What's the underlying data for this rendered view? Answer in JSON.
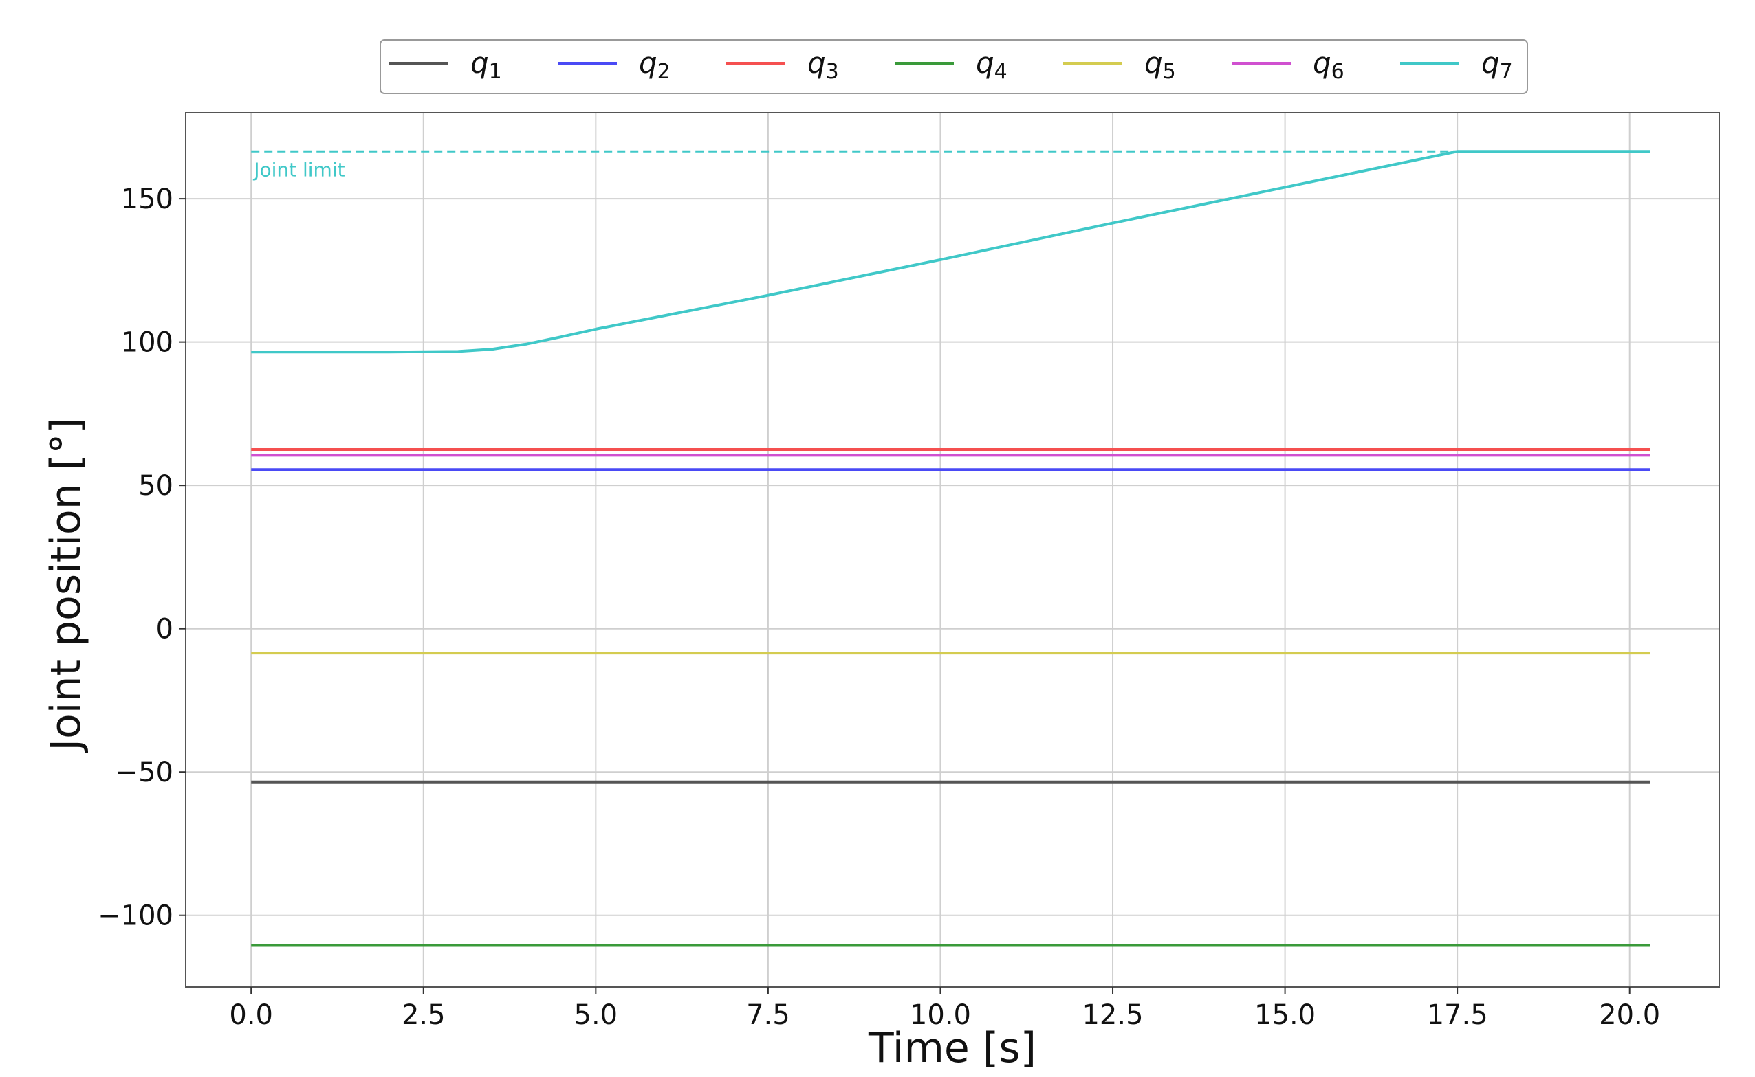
{
  "chart_data": {
    "type": "line",
    "xlabel": "Time [s]",
    "ylabel": "Joint position [°]",
    "xlim": [
      -0.95,
      21.3
    ],
    "ylim": [
      -125,
      180
    ],
    "xticks": [
      0.0,
      2.5,
      5.0,
      7.5,
      10.0,
      12.5,
      15.0,
      17.5,
      20.0
    ],
    "xtick_labels": [
      "0.0",
      "2.5",
      "5.0",
      "7.5",
      "10.0",
      "12.5",
      "15.0",
      "17.5",
      "20.0"
    ],
    "yticks": [
      -100,
      -50,
      0,
      50,
      100,
      150
    ],
    "ytick_labels": [
      "−100",
      "−50",
      "0",
      "50",
      "100",
      "150"
    ],
    "grid": true,
    "legend_position": "top-center, above plot, single row",
    "series": [
      {
        "name_base": "q",
        "name_sub": "1",
        "color": "#555555",
        "x": [
          0,
          20.3
        ],
        "y": [
          -53.5,
          -53.5
        ]
      },
      {
        "name_base": "q",
        "name_sub": "2",
        "color": "#4a4af5",
        "x": [
          0,
          20.3
        ],
        "y": [
          55.5,
          55.5
        ]
      },
      {
        "name_base": "q",
        "name_sub": "3",
        "color": "#f55050",
        "x": [
          0,
          20.3
        ],
        "y": [
          62.5,
          62.5
        ]
      },
      {
        "name_base": "q",
        "name_sub": "4",
        "color": "#3a9a3a",
        "x": [
          0,
          20.3
        ],
        "y": [
          -110.5,
          -110.5
        ]
      },
      {
        "name_base": "q",
        "name_sub": "5",
        "color": "#d4cc50",
        "x": [
          0,
          20.3
        ],
        "y": [
          -8.5,
          -8.5
        ]
      },
      {
        "name_base": "q",
        "name_sub": "6",
        "color": "#d050d0",
        "x": [
          0,
          20.3
        ],
        "y": [
          60.5,
          60.5
        ]
      },
      {
        "name_base": "q",
        "name_sub": "7",
        "color": "#40c8c8",
        "x": [
          0,
          1,
          2,
          3,
          3.5,
          4,
          4.5,
          5,
          7.5,
          10,
          12.5,
          15,
          17.5,
          20.3
        ],
        "y": [
          96.5,
          96.5,
          96.5,
          96.7,
          97.5,
          99.3,
          101.8,
          104.5,
          116.3,
          128.7,
          141.5,
          154.0,
          166.5,
          166.5
        ]
      }
    ],
    "annotations": [
      {
        "type": "hline",
        "y": 166.5,
        "x_range": [
          0,
          20.3
        ],
        "style": "dashed",
        "color": "#40c8c8",
        "label": "Joint limit"
      }
    ]
  }
}
